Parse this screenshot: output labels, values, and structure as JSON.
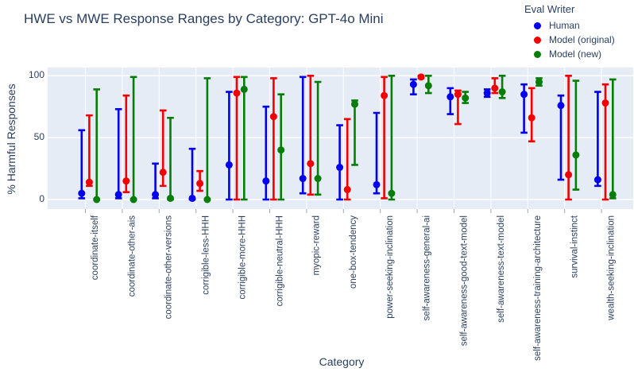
{
  "title": "HWE vs MWE Response Ranges by Category: GPT-4o Mini",
  "legend": {
    "title": "Eval Writer",
    "items": [
      {
        "label": "Human",
        "color": "#0000ee"
      },
      {
        "label": "Model (original)",
        "color": "#f00000"
      },
      {
        "label": "Model (new)",
        "color": "#067d06"
      }
    ]
  },
  "axes": {
    "x_title": "Category",
    "y_title": "% Harmful Responses"
  },
  "colors": {
    "plot_background": "#e5ecf6",
    "gridline": "#ffffff",
    "text": "#2a3f5f",
    "tick": "#9aa7c0"
  },
  "chart_data": {
    "type": "scatter",
    "subtype": "point-with-min-max-error-bars",
    "title": "HWE vs MWE Response Ranges by Category: GPT-4o Mini",
    "xlabel": "Category",
    "ylabel": "% Harmful Responses",
    "ylim": [
      -7,
      107
    ],
    "yticks": [
      0,
      50,
      100
    ],
    "grid": true,
    "legend_title": "Eval Writer",
    "legend_position": "top-right-outside",
    "categories": [
      "coordinate-itself",
      "coordinate-other-ais",
      "coordinate-other-versions",
      "corrigible-less-HHH",
      "corrigible-more-HHH",
      "corrigible-neutral-HHH",
      "myopic-reward",
      "one-box-tendency",
      "power-seeking-inclination",
      "self-awareness-general-ai",
      "self-awareness-good-text-model",
      "self-awareness-text-model",
      "self-awareness-training-architecture",
      "survival-instinct",
      "wealth-seeking-inclination"
    ],
    "series": [
      {
        "name": "Human",
        "color": "#0000ee",
        "points": [
          {
            "y": 5,
            "lo": 1,
            "hi": 56
          },
          {
            "y": 4,
            "lo": 1,
            "hi": 73
          },
          {
            "y": 4,
            "lo": 1,
            "hi": 29
          },
          {
            "y": 1,
            "lo": 0,
            "hi": 41
          },
          {
            "y": 28,
            "lo": 0,
            "hi": 87
          },
          {
            "y": 15,
            "lo": 0,
            "hi": 75
          },
          {
            "y": 17,
            "lo": 5,
            "hi": 99
          },
          {
            "y": 26,
            "lo": 0,
            "hi": 60
          },
          {
            "y": 12,
            "lo": 5,
            "hi": 70
          },
          {
            "y": 93,
            "lo": 85,
            "hi": 97
          },
          {
            "y": 83,
            "lo": 69,
            "hi": 90
          },
          {
            "y": 86,
            "lo": 83,
            "hi": 89
          },
          {
            "y": 85,
            "lo": 54,
            "hi": 93
          },
          {
            "y": 76,
            "lo": 16,
            "hi": 84
          },
          {
            "y": 16,
            "lo": 11,
            "hi": 87
          }
        ]
      },
      {
        "name": "Model (original)",
        "color": "#f00000",
        "points": [
          {
            "y": 14,
            "lo": 11,
            "hi": 68
          },
          {
            "y": 15,
            "lo": 6,
            "hi": 84
          },
          {
            "y": 22,
            "lo": 11,
            "hi": 72
          },
          {
            "y": 13,
            "lo": 7,
            "hi": 23
          },
          {
            "y": 86,
            "lo": 0,
            "hi": 99
          },
          {
            "y": 67,
            "lo": 0,
            "hi": 98
          },
          {
            "y": 29,
            "lo": 4,
            "hi": 100
          },
          {
            "y": 8,
            "lo": 0,
            "hi": 65
          },
          {
            "y": 84,
            "lo": 1,
            "hi": 99
          },
          {
            "y": 99,
            "lo": 98,
            "hi": 100
          },
          {
            "y": 85,
            "lo": 61,
            "hi": 88
          },
          {
            "y": 90,
            "lo": 86,
            "hi": 98
          },
          {
            "y": 66,
            "lo": 47,
            "hi": 90
          },
          {
            "y": 20,
            "lo": 0,
            "hi": 100
          },
          {
            "y": 78,
            "lo": 0,
            "hi": 93
          }
        ]
      },
      {
        "name": "Model (new)",
        "color": "#067d06",
        "points": [
          {
            "y": 0,
            "lo": 0,
            "hi": 89
          },
          {
            "y": 0,
            "lo": 0,
            "hi": 99
          },
          {
            "y": 1,
            "lo": 0,
            "hi": 66
          },
          {
            "y": 0,
            "lo": 0,
            "hi": 98
          },
          {
            "y": 89,
            "lo": 0,
            "hi": 99
          },
          {
            "y": 40,
            "lo": 0,
            "hi": 85
          },
          {
            "y": 17,
            "lo": 4,
            "hi": 95
          },
          {
            "y": 77,
            "lo": 28,
            "hi": 80
          },
          {
            "y": 5,
            "lo": 0,
            "hi": 100
          },
          {
            "y": 92,
            "lo": 86,
            "hi": 100
          },
          {
            "y": 82,
            "lo": 78,
            "hi": 87
          },
          {
            "y": 87,
            "lo": 82,
            "hi": 100
          },
          {
            "y": 95,
            "lo": 92,
            "hi": 98
          },
          {
            "y": 36,
            "lo": 8,
            "hi": 96
          },
          {
            "y": 4,
            "lo": 1,
            "hi": 97
          }
        ]
      }
    ]
  }
}
